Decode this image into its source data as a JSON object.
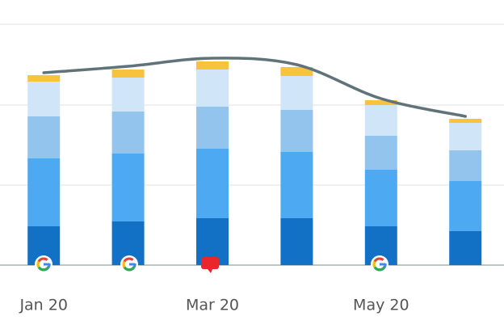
{
  "chart_data": {
    "type": "stacked-bar-line",
    "categories": [
      "Jan 20",
      null,
      "Mar 20",
      null,
      "May 20",
      null
    ],
    "series": [
      {
        "color": "#1271c5",
        "values": [
          48,
          54,
          58,
          58,
          48,
          42
        ]
      },
      {
        "color": "#4daaf2",
        "values": [
          84,
          84,
          86,
          82,
          70,
          62
        ]
      },
      {
        "color": "#92c4ee",
        "values": [
          52,
          52,
          52,
          52,
          42,
          38
        ]
      },
      {
        "color": "#d0e6f8",
        "values": [
          43,
          42,
          46,
          42,
          38,
          34
        ]
      },
      {
        "color": "#f7c33f",
        "values": [
          8,
          10,
          10,
          11,
          6,
          5
        ]
      }
    ],
    "line": {
      "color": "#5f7379",
      "values": [
        238,
        246,
        256,
        248,
        206,
        184
      ]
    },
    "ylim": [
      0,
      328
    ],
    "yticks": [
      0,
      99,
      198,
      298
    ],
    "grid": true
  }
}
